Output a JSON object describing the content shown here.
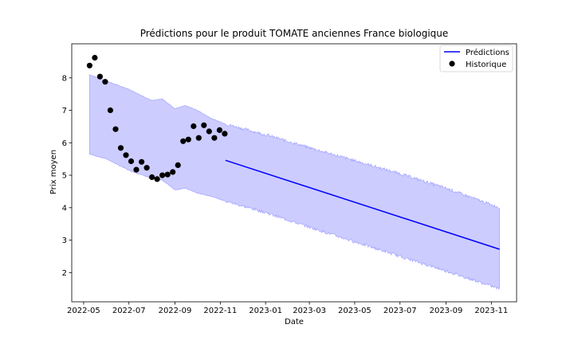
{
  "chart_data": {
    "type": "line",
    "title": "Prédictions pour le produit TOMATE anciennes France biologique",
    "xlabel": "Date",
    "ylabel": "Prix moyen",
    "xlim": [
      "2022-04-15",
      "2023-12-05"
    ],
    "ylim": [
      1.1,
      9.05
    ],
    "grid": false,
    "legend_position": "upper right",
    "x_ticks": [
      "2022-05",
      "2022-07",
      "2022-09",
      "2022-11",
      "2023-01",
      "2023-03",
      "2023-05",
      "2023-07",
      "2023-09",
      "2023-11"
    ],
    "y_ticks": [
      2,
      3,
      4,
      5,
      6,
      7,
      8
    ],
    "colors": {
      "prediction": "#0000ff",
      "interval_fill": "#ccccff",
      "interval_edge": "#9999ff",
      "history": "#000000"
    },
    "series": [
      {
        "name": "Prédictions",
        "kind": "line",
        "x": [
          "2022-11-08",
          "2023-11-12"
        ],
        "y": [
          5.46,
          2.72
        ]
      },
      {
        "name": "Historique",
        "kind": "scatter",
        "x": [
          "2022-05-09",
          "2022-05-16",
          "2022-05-23",
          "2022-05-30",
          "2022-06-06",
          "2022-06-13",
          "2022-06-20",
          "2022-06-27",
          "2022-07-04",
          "2022-07-11",
          "2022-07-18",
          "2022-07-25",
          "2022-08-01",
          "2022-08-08",
          "2022-08-15",
          "2022-08-22",
          "2022-08-29",
          "2022-09-05",
          "2022-09-12",
          "2022-09-19",
          "2022-09-26",
          "2022-10-03",
          "2022-10-10",
          "2022-10-17",
          "2022-10-24",
          "2022-10-31",
          "2022-11-07"
        ],
        "y": [
          8.38,
          8.62,
          8.04,
          7.88,
          7.0,
          6.42,
          5.84,
          5.62,
          5.43,
          5.17,
          5.41,
          5.23,
          4.94,
          4.88,
          5.0,
          5.02,
          5.1,
          5.31,
          6.05,
          6.1,
          6.51,
          6.15,
          6.54,
          6.35,
          6.15,
          6.39,
          6.28
        ]
      }
    ],
    "interval": {
      "x": [
        "2022-05-09",
        "2022-06-01",
        "2022-07-01",
        "2022-08-01",
        "2022-08-15",
        "2022-09-01",
        "2022-09-15",
        "2022-10-01",
        "2022-10-20",
        "2022-11-08",
        "2023-01-01",
        "2023-03-01",
        "2023-05-01",
        "2023-07-01",
        "2023-09-01",
        "2023-11-12"
      ],
      "upper": [
        8.1,
        7.9,
        7.65,
        7.3,
        7.35,
        7.05,
        7.15,
        7.0,
        6.75,
        6.58,
        6.25,
        5.85,
        5.45,
        5.05,
        4.6,
        4.0
      ],
      "lower": [
        5.65,
        5.5,
        5.15,
        4.9,
        4.85,
        4.55,
        4.6,
        4.45,
        4.35,
        4.2,
        3.85,
        3.4,
        2.95,
        2.5,
        2.05,
        1.5
      ]
    }
  }
}
